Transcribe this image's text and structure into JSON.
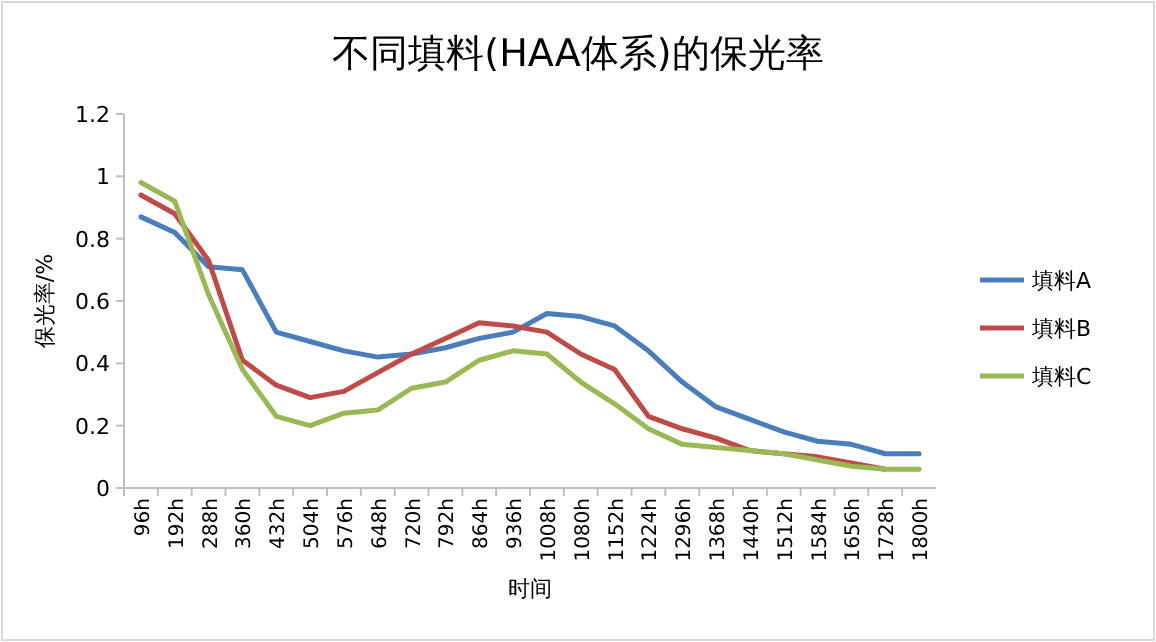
{
  "chart_data": {
    "type": "line",
    "title": "不同填料(HAA体系)的保光率",
    "xlabel": "时间",
    "ylabel": "保光率/%",
    "categories": [
      "96h",
      "192h",
      "288h",
      "360h",
      "432h",
      "504h",
      "576h",
      "648h",
      "720h",
      "792h",
      "864h",
      "936h",
      "1008h",
      "1080h",
      "1152h",
      "1224h",
      "1296h",
      "1368h",
      "1440h",
      "1512h",
      "1584h",
      "1656h",
      "1728h",
      "1800h"
    ],
    "series": [
      {
        "name": "填料A",
        "color": "#4a7ebb",
        "values": [
          0.87,
          0.82,
          0.71,
          0.7,
          0.5,
          0.47,
          0.44,
          0.42,
          0.43,
          0.45,
          0.48,
          0.5,
          0.56,
          0.55,
          0.52,
          0.44,
          0.34,
          0.26,
          0.22,
          0.18,
          0.15,
          0.14,
          0.11,
          0.11
        ]
      },
      {
        "name": "填料B",
        "color": "#be4b48",
        "values": [
          0.94,
          0.88,
          0.73,
          0.41,
          0.33,
          0.29,
          0.31,
          0.37,
          0.43,
          0.48,
          0.53,
          0.52,
          0.5,
          0.43,
          0.38,
          0.23,
          0.19,
          0.16,
          0.12,
          0.11,
          0.1,
          0.08,
          0.06,
          null
        ]
      },
      {
        "name": "填料C",
        "color": "#98b954",
        "values": [
          0.98,
          0.92,
          0.62,
          0.38,
          0.23,
          0.2,
          0.24,
          0.25,
          0.32,
          0.34,
          0.41,
          0.44,
          0.43,
          0.34,
          0.27,
          0.19,
          0.14,
          0.13,
          0.12,
          0.11,
          0.09,
          0.07,
          0.06,
          0.06
        ]
      }
    ],
    "ylim": [
      0,
      1.2
    ],
    "yticks": [
      0,
      0.2,
      0.4,
      0.6,
      0.8,
      1,
      1.2
    ],
    "grid": false,
    "legend": "right",
    "marker": "none",
    "line_style": "solid"
  }
}
